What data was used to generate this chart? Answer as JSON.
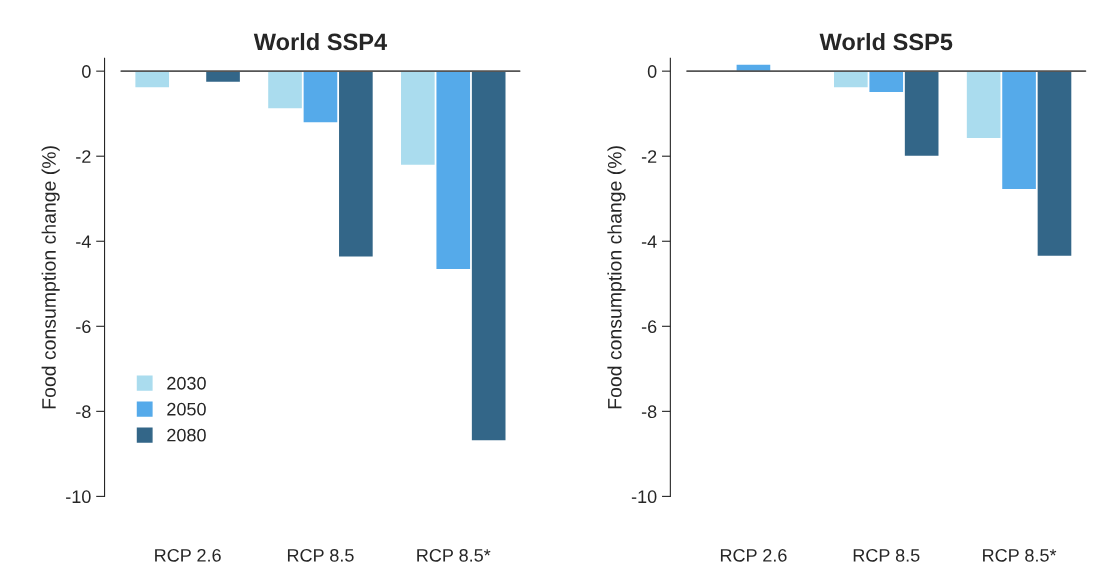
{
  "chart_data": [
    {
      "type": "bar",
      "title": "World SSP4",
      "ylabel": "Food consumption change (%)",
      "categories": [
        "RCP 2.6",
        "RCP 8.5",
        "RCP 8.5*"
      ],
      "series": [
        {
          "name": "2030",
          "color": "#aadcee",
          "values": [
            -0.38,
            -0.87,
            -2.2
          ]
        },
        {
          "name": "2050",
          "color": "#55aaea",
          "values": [
            0,
            -1.2,
            -4.65
          ]
        },
        {
          "name": "2080",
          "color": "#336688",
          "values": [
            -0.25,
            -4.36,
            -8.68
          ]
        }
      ],
      "ylim": [
        -10,
        0.3
      ],
      "yticks": [
        {
          "value": 0,
          "label": "0"
        },
        {
          "value": -2,
          "label": "-2"
        },
        {
          "value": -4,
          "label": "-4"
        },
        {
          "value": -6,
          "label": "-6"
        },
        {
          "value": -8,
          "label": "-8"
        },
        {
          "value": -10,
          "label": "-10"
        }
      ],
      "ref_lines": [
        {
          "axis": "y",
          "value": 0,
          "color": "#555555"
        }
      ],
      "legend": "bottom left",
      "grid": false
    },
    {
      "type": "bar",
      "title": "World SSP5",
      "ylabel": "Food consumption change (%)",
      "categories": [
        "RCP 2.6",
        "RCP 8.5",
        "RCP 8.5*"
      ],
      "series": [
        {
          "color": "#aadcee",
          "values": [
            0,
            -0.38,
            -1.57
          ]
        },
        {
          "color": "#55aaea",
          "values": [
            0.15,
            -0.49,
            -2.77
          ]
        },
        {
          "color": "#336688",
          "values": [
            null,
            -1.99,
            -4.34
          ]
        }
      ],
      "ylim": [
        -10,
        0.3
      ],
      "yticks": [
        {
          "value": 0,
          "label": "0"
        },
        {
          "value": -2,
          "label": "-2"
        },
        {
          "value": -4,
          "label": "-4"
        },
        {
          "value": -6,
          "label": "-6"
        },
        {
          "value": -8,
          "label": "-8"
        },
        {
          "value": -10,
          "label": "-10"
        }
      ],
      "ref_lines": [
        {
          "axis": "y",
          "value": 0,
          "color": "#555555"
        }
      ],
      "legend": false,
      "grid": false
    }
  ]
}
